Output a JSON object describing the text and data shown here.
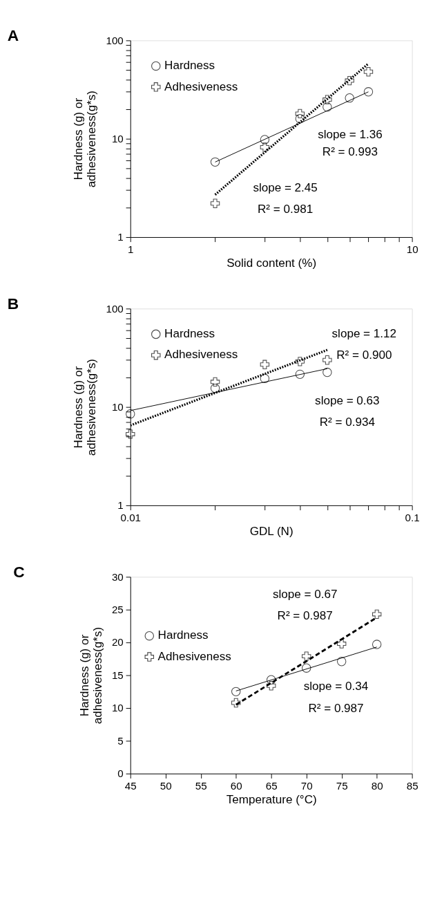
{
  "chart_data": [
    {
      "type": "scatter",
      "title": "A",
      "xlabel": "Solid content (%)",
      "ylabel": "Hardness (g) or\nadhesiveness(g*s)",
      "log": "xy",
      "grid": false,
      "legend": "top left",
      "xlim": [
        1,
        10
      ],
      "ylim": [
        1,
        100
      ],
      "xticks": [
        1,
        {
          "value": 2,
          "label": null
        },
        {
          "value": 3,
          "label": null
        },
        {
          "value": 4,
          "label": null
        },
        {
          "value": 5,
          "label": null
        },
        {
          "value": 6,
          "label": null
        },
        {
          "value": 7,
          "label": null
        },
        {
          "value": 8,
          "label": null
        },
        {
          "value": 9,
          "label": null
        },
        10
      ],
      "yticks": [
        1,
        {
          "value": 2,
          "label": null
        },
        {
          "value": 3,
          "label": null
        },
        {
          "value": 4,
          "label": null
        },
        {
          "value": 5,
          "label": null
        },
        {
          "value": 6,
          "label": null
        },
        {
          "value": 7,
          "label": null
        },
        {
          "value": 8,
          "label": null
        },
        {
          "value": 9,
          "label": null
        },
        10,
        {
          "value": 20,
          "label": null
        },
        {
          "value": 30,
          "label": null
        },
        {
          "value": 40,
          "label": null
        },
        {
          "value": 50,
          "label": null
        },
        {
          "value": 60,
          "label": null
        },
        {
          "value": 70,
          "label": null
        },
        {
          "value": 80,
          "label": null
        },
        {
          "value": 90,
          "label": null
        },
        100
      ],
      "series": [
        {
          "name": "Hardness",
          "type": "scatter",
          "marker": "circle",
          "color": "#000000",
          "x": [
            2,
            3,
            4,
            5,
            6,
            7
          ],
          "values": [
            5.8,
            9.8,
            16,
            21,
            26,
            30
          ]
        },
        {
          "name": "Adhesiveness",
          "type": "scatter",
          "marker": "cross",
          "color": "#000000",
          "x": [
            2,
            3,
            4,
            5,
            6,
            7
          ],
          "values": [
            2.2,
            8.2,
            18,
            25,
            39,
            48
          ]
        },
        {
          "type": "line",
          "line_style": "solid",
          "marker": "none",
          "color": "#000000",
          "x": [
            2,
            7
          ],
          "values": [
            5.8,
            30
          ]
        },
        {
          "type": "line",
          "line_style": "dotted",
          "marker": "none",
          "color": "#000000",
          "x": [
            2,
            7
          ],
          "values": [
            2.7,
            58
          ]
        }
      ],
      "annotations": [
        "slope = 1.36",
        "R² = 0.993",
        "slope = 2.45",
        "R² = 0.981"
      ]
    },
    {
      "type": "scatter",
      "title": "B",
      "xlabel": "GDL (N)",
      "ylabel": "Hardness (g) or\nadhesiveness(g*s)",
      "log": "xy",
      "grid": false,
      "legend": "top left",
      "xlim": [
        0.01,
        0.1
      ],
      "ylim": [
        1,
        100
      ],
      "xticks": [
        0.01,
        {
          "value": 0.02,
          "label": null
        },
        {
          "value": 0.03,
          "label": null
        },
        {
          "value": 0.04,
          "label": null
        },
        {
          "value": 0.05,
          "label": null
        },
        {
          "value": 0.06,
          "label": null
        },
        {
          "value": 0.07,
          "label": null
        },
        {
          "value": 0.08,
          "label": null
        },
        {
          "value": 0.09,
          "label": null
        },
        0.1
      ],
      "yticks": [
        1,
        {
          "value": 2,
          "label": null
        },
        {
          "value": 3,
          "label": null
        },
        {
          "value": 4,
          "label": null
        },
        {
          "value": 5,
          "label": null
        },
        {
          "value": 6,
          "label": null
        },
        {
          "value": 7,
          "label": null
        },
        {
          "value": 8,
          "label": null
        },
        {
          "value": 9,
          "label": null
        },
        10,
        {
          "value": 20,
          "label": null
        },
        {
          "value": 30,
          "label": null
        },
        {
          "value": 40,
          "label": null
        },
        {
          "value": 50,
          "label": null
        },
        {
          "value": 60,
          "label": null
        },
        {
          "value": 70,
          "label": null
        },
        {
          "value": 80,
          "label": null
        },
        {
          "value": 90,
          "label": null
        },
        100
      ],
      "series": [
        {
          "name": "Hardness",
          "type": "scatter",
          "marker": "circle",
          "color": "#000000",
          "x": [
            0.01,
            0.02,
            0.03,
            0.04,
            0.05
          ],
          "values": [
            8.5,
            15.5,
            19.5,
            21.5,
            22.5
          ]
        },
        {
          "name": "Adhesiveness",
          "type": "scatter",
          "marker": "cross",
          "color": "#000000",
          "x": [
            0.01,
            0.02,
            0.03,
            0.04,
            0.05
          ],
          "values": [
            5.3,
            18,
            27,
            29,
            30
          ]
        },
        {
          "type": "line",
          "line_style": "solid",
          "marker": "none",
          "color": "#000000",
          "x": [
            0.01,
            0.05
          ],
          "values": [
            9.2,
            24.5
          ]
        },
        {
          "type": "line",
          "line_style": "dotted",
          "marker": "none",
          "color": "#000000",
          "x": [
            0.01,
            0.05
          ],
          "values": [
            6.5,
            38
          ]
        }
      ],
      "annotations": [
        "slope = 1.12",
        "R² = 0.900",
        "slope = 0.63",
        "R² = 0.934"
      ]
    },
    {
      "type": "scatter",
      "title": "C",
      "xlabel": "Temperature (°C)",
      "ylabel": "Hardness (g) or\nadhesiveness(g*s)",
      "grid": false,
      "legend": "left",
      "xlim": [
        45,
        85
      ],
      "ylim": [
        0,
        30
      ],
      "xticks": [
        45,
        50,
        55,
        60,
        65,
        70,
        75,
        80,
        85
      ],
      "yticks": [
        0,
        5,
        10,
        15,
        20,
        25,
        30
      ],
      "series": [
        {
          "name": "Hardness",
          "type": "scatter",
          "marker": "circle",
          "color": "#000000",
          "x": [
            60,
            65,
            70,
            75,
            80
          ],
          "values": [
            12.5,
            14.3,
            16.1,
            17.1,
            19.7
          ]
        },
        {
          "name": "Adhesiveness",
          "type": "scatter",
          "marker": "cross",
          "color": "#000000",
          "x": [
            60,
            65,
            70,
            75,
            80
          ],
          "values": [
            10.8,
            13.4,
            17.9,
            19.8,
            24.3
          ]
        },
        {
          "type": "line",
          "line_style": "solid",
          "marker": "none",
          "color": "#000000",
          "x": [
            60,
            80
          ],
          "values": [
            12.6,
            19.3
          ]
        },
        {
          "type": "line",
          "line_style": "dashed",
          "marker": "none",
          "color": "#000000",
          "x": [
            60,
            80
          ],
          "values": [
            10.5,
            23.8
          ]
        }
      ],
      "annotations": [
        "slope = 0.67",
        "R² = 0.987",
        "slope = 0.34",
        "R² = 0.987"
      ]
    }
  ]
}
